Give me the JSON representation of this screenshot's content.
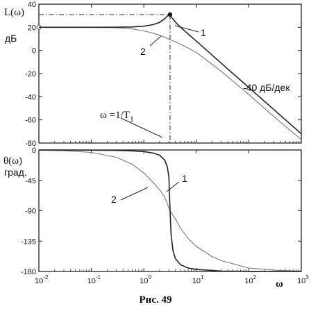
{
  "caption": "Рис. 49",
  "chart_data": [
    {
      "type": "line",
      "x_scale": "log",
      "xlim": [
        0.01,
        1000
      ],
      "ylim": [
        -80,
        40
      ],
      "yticks": [
        40,
        20,
        0,
        -20,
        -40,
        -60,
        -80
      ],
      "grid": false,
      "ylabel": "L(ω)",
      "ylabel_unit": "дБ",
      "annotations": {
        "slope": "-40 дБ/дек",
        "corner": "ω =1/T",
        "corner_sub": "1",
        "label_1": "1",
        "label_2": "2"
      },
      "corner_frequency": 3.16,
      "peak": {
        "x": 3.16,
        "y": 31
      },
      "series": [
        {
          "id": "1",
          "x": [
            0.01,
            0.1,
            0.3,
            0.6,
            1.0,
            1.5,
            2.0,
            2.5,
            2.8,
            3.0,
            3.16,
            3.4,
            4.0,
            5.0,
            7.0,
            10,
            30,
            100,
            300,
            1000
          ],
          "values": [
            20,
            20,
            20.1,
            20.3,
            21,
            22.3,
            24.3,
            27.5,
            29.7,
            30.6,
            31,
            28.4,
            24.5,
            20.1,
            14.2,
            8.1,
            -11.1,
            -32.0,
            -51.1,
            -72.0
          ]
        },
        {
          "id": "2",
          "x": [
            0.01,
            0.1,
            0.3,
            0.6,
            1.0,
            1.5,
            2.0,
            2.5,
            3.16,
            4.0,
            5.0,
            7.0,
            10,
            30,
            100,
            300,
            1000
          ],
          "values": [
            20,
            19.9,
            19.6,
            18.6,
            16.9,
            14.9,
            13.1,
            11.4,
            9.4,
            7.4,
            5.3,
            2.0,
            -1.7,
            -18.1,
            -38.1,
            -57.1,
            -77.0
          ]
        }
      ]
    },
    {
      "type": "line",
      "x_scale": "log",
      "xlim": [
        0.01,
        1000
      ],
      "ylim": [
        -180,
        0
      ],
      "yticks": [
        0,
        -45,
        -90,
        -135,
        -180
      ],
      "xticks": [
        "10^-2",
        "10^-1",
        "10^0",
        "10^1",
        "10^2",
        "10^3"
      ],
      "grid": false,
      "ylabel": "θ(ω)",
      "ylabel_unit": "град.",
      "xlabel": "ω",
      "annotations": {
        "label_1": "1",
        "label_2": "2"
      },
      "series": [
        {
          "id": "1",
          "x": [
            0.01,
            0.1,
            0.3,
            0.6,
            1.0,
            1.5,
            2.0,
            2.5,
            2.8,
            3.0,
            3.16,
            3.3,
            3.6,
            4.0,
            5.0,
            7.0,
            10,
            30,
            100,
            1000
          ],
          "values": [
            0,
            -0.2,
            -0.6,
            -1.3,
            -2.4,
            -4.5,
            -7.7,
            -15.1,
            -25,
            -40,
            -90,
            -125,
            -150,
            -161,
            -170,
            -175,
            -177,
            -179.4,
            -179.8,
            -180
          ]
        },
        {
          "id": "2",
          "x": [
            0.01,
            0.03,
            0.1,
            0.3,
            0.6,
            1.0,
            1.5,
            2.0,
            2.5,
            3.16,
            4.0,
            5.0,
            7.0,
            10,
            20,
            30,
            100,
            300,
            1000
          ],
          "values": [
            -0.4,
            -1.1,
            -3.6,
            -10.8,
            -21.2,
            -34,
            -48,
            -59,
            -70,
            -90,
            -102,
            -116,
            -131,
            -143,
            -158,
            -164,
            -175,
            -178,
            -179.4
          ]
        }
      ]
    }
  ]
}
